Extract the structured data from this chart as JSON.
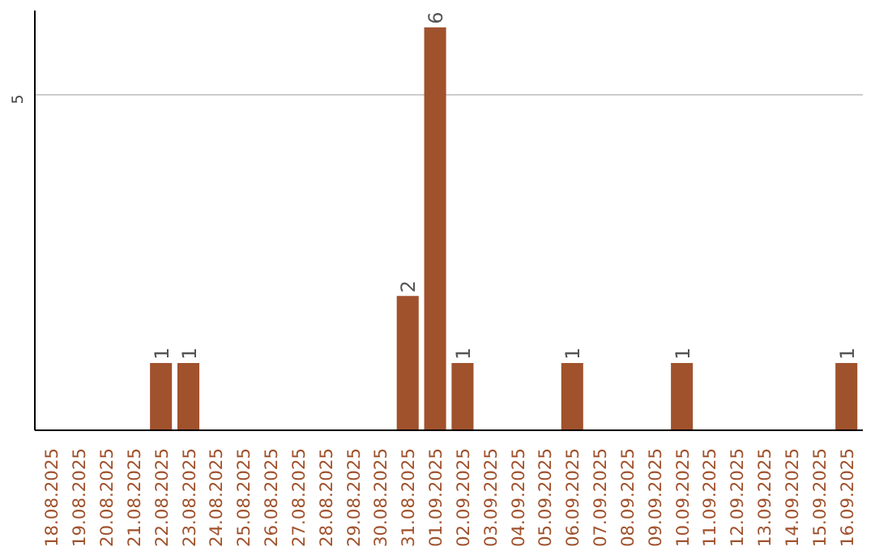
{
  "chart_data": {
    "type": "bar",
    "categories": [
      "18.08.2025",
      "19.08.2025",
      "20.08.2025",
      "21.08.2025",
      "22.08.2025",
      "23.08.2025",
      "24.08.2025",
      "25.08.2025",
      "26.08.2025",
      "27.08.2025",
      "28.08.2025",
      "29.08.2025",
      "30.08.2025",
      "31.08.2025",
      "01.09.2025",
      "02.09.2025",
      "03.09.2025",
      "04.09.2025",
      "05.09.2025",
      "06.09.2025",
      "07.09.2025",
      "08.09.2025",
      "09.09.2025",
      "10.09.2025",
      "11.09.2025",
      "12.09.2025",
      "13.09.2025",
      "14.09.2025",
      "15.09.2025",
      "16.09.2025"
    ],
    "values": [
      0,
      0,
      0,
      0,
      1,
      1,
      0,
      0,
      0,
      0,
      0,
      0,
      0,
      2,
      6,
      1,
      0,
      0,
      0,
      1,
      0,
      0,
      0,
      1,
      0,
      0,
      0,
      0,
      0,
      1
    ],
    "value_labels": [
      null,
      null,
      null,
      null,
      "1",
      "1",
      null,
      null,
      null,
      null,
      null,
      null,
      null,
      "2",
      "6",
      "1",
      null,
      null,
      null,
      "1",
      null,
      null,
      null,
      "1",
      null,
      null,
      null,
      null,
      null,
      "1"
    ],
    "color": "#a0522d",
    "ylim": [
      0,
      6.25
    ],
    "yticks": [
      0,
      5
    ],
    "grid": "y"
  }
}
